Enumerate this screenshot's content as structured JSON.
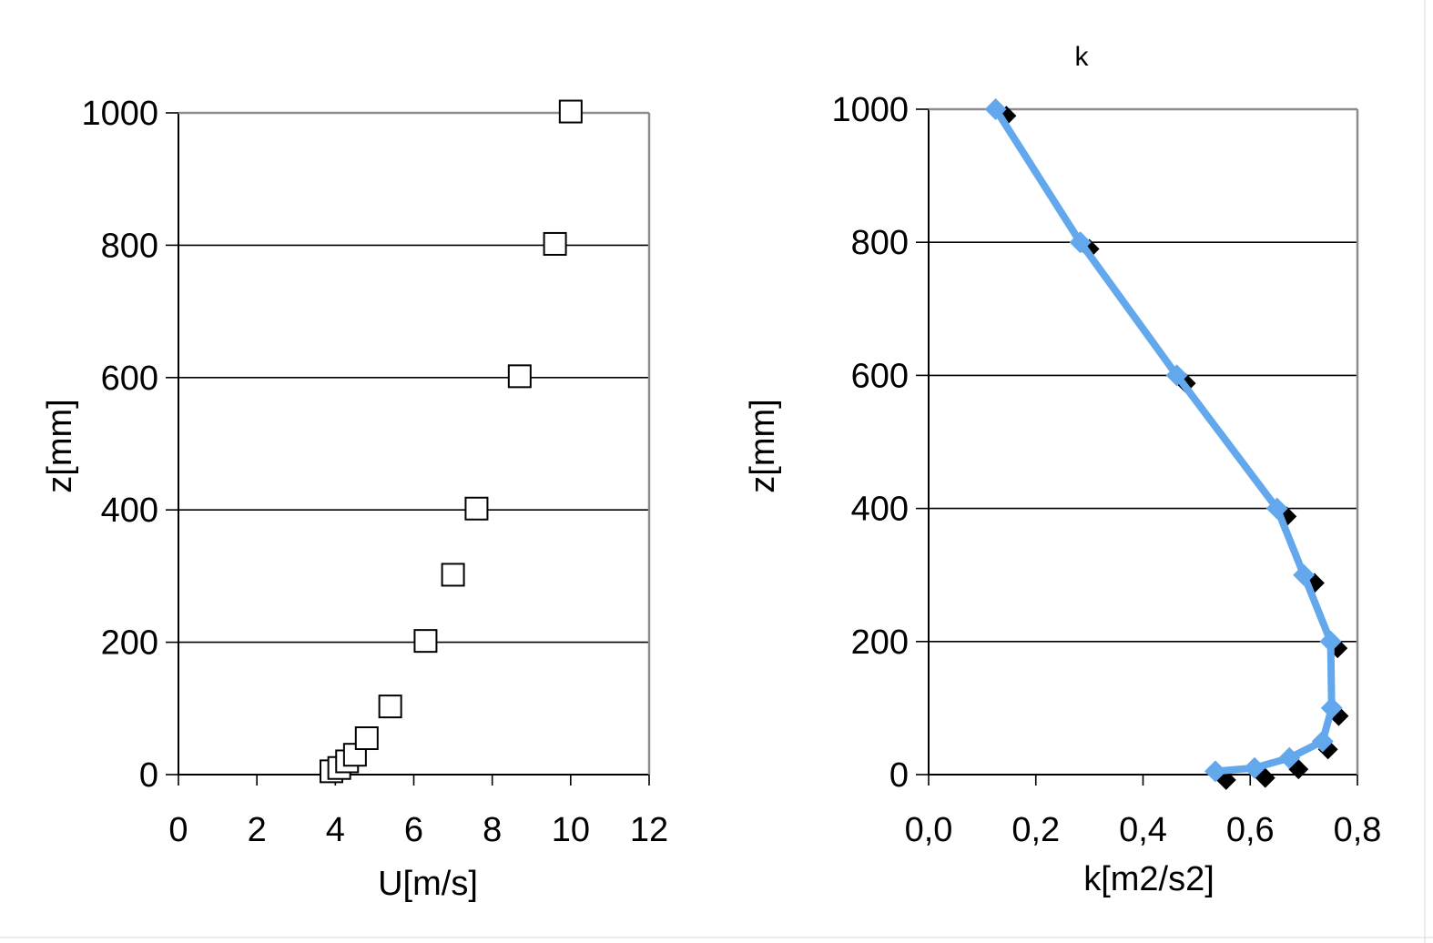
{
  "chart_data": [
    {
      "type": "scatter",
      "title": "",
      "xlabel": "U[m/s]",
      "ylabel": "z[mm]",
      "xlim": [
        0,
        12
      ],
      "ylim": [
        0,
        1000
      ],
      "xticks": [
        "0",
        "2",
        "4",
        "6",
        "8",
        "10",
        "12"
      ],
      "yticks": [
        "0",
        "200",
        "400",
        "600",
        "800",
        "1000"
      ],
      "grid": "horizontal",
      "series": [
        {
          "marker": "open-square",
          "points": [
            {
              "x": 3.9,
              "y": 5
            },
            {
              "x": 4.1,
              "y": 10
            },
            {
              "x": 4.3,
              "y": 20
            },
            {
              "x": 4.5,
              "y": 30
            },
            {
              "x": 4.8,
              "y": 55
            },
            {
              "x": 5.4,
              "y": 103
            },
            {
              "x": 6.3,
              "y": 202
            },
            {
              "x": 7.0,
              "y": 302
            },
            {
              "x": 7.6,
              "y": 402
            },
            {
              "x": 8.7,
              "y": 602
            },
            {
              "x": 9.6,
              "y": 802
            },
            {
              "x": 10.0,
              "y": 1002
            }
          ]
        }
      ]
    },
    {
      "type": "line",
      "title": "k",
      "xlabel": "k[m2/s2]",
      "ylabel": "z[mm]",
      "xlim": [
        0,
        0.8
      ],
      "ylim": [
        0,
        1000
      ],
      "xticks": [
        "0,0",
        "0,2",
        "0,4",
        "0,6",
        "0,8"
      ],
      "yticks": [
        "0",
        "200",
        "400",
        "600",
        "800",
        "1000"
      ],
      "grid": "horizontal",
      "series": [
        {
          "marker": "diamond",
          "color": "#000000",
          "points": [
            {
              "x": 0.555,
              "y": -8
            },
            {
              "x": 0.628,
              "y": -5
            },
            {
              "x": 0.69,
              "y": 8
            },
            {
              "x": 0.745,
              "y": 38
            },
            {
              "x": 0.765,
              "y": 88
            },
            {
              "x": 0.763,
              "y": 190
            },
            {
              "x": 0.72,
              "y": 288
            },
            {
              "x": 0.668,
              "y": 388
            },
            {
              "x": 0.48,
              "y": 588
            },
            {
              "x": 0.3,
              "y": 790
            },
            {
              "x": 0.145,
              "y": 990
            }
          ]
        },
        {
          "marker": "diamond",
          "color": "#63a8ec",
          "points": [
            {
              "x": 0.535,
              "y": 5
            },
            {
              "x": 0.608,
              "y": 10
            },
            {
              "x": 0.673,
              "y": 25
            },
            {
              "x": 0.735,
              "y": 50
            },
            {
              "x": 0.752,
              "y": 100
            },
            {
              "x": 0.75,
              "y": 200
            },
            {
              "x": 0.7,
              "y": 300
            },
            {
              "x": 0.65,
              "y": 400
            },
            {
              "x": 0.463,
              "y": 600
            },
            {
              "x": 0.283,
              "y": 800
            },
            {
              "x": 0.125,
              "y": 1000
            }
          ]
        }
      ]
    }
  ]
}
